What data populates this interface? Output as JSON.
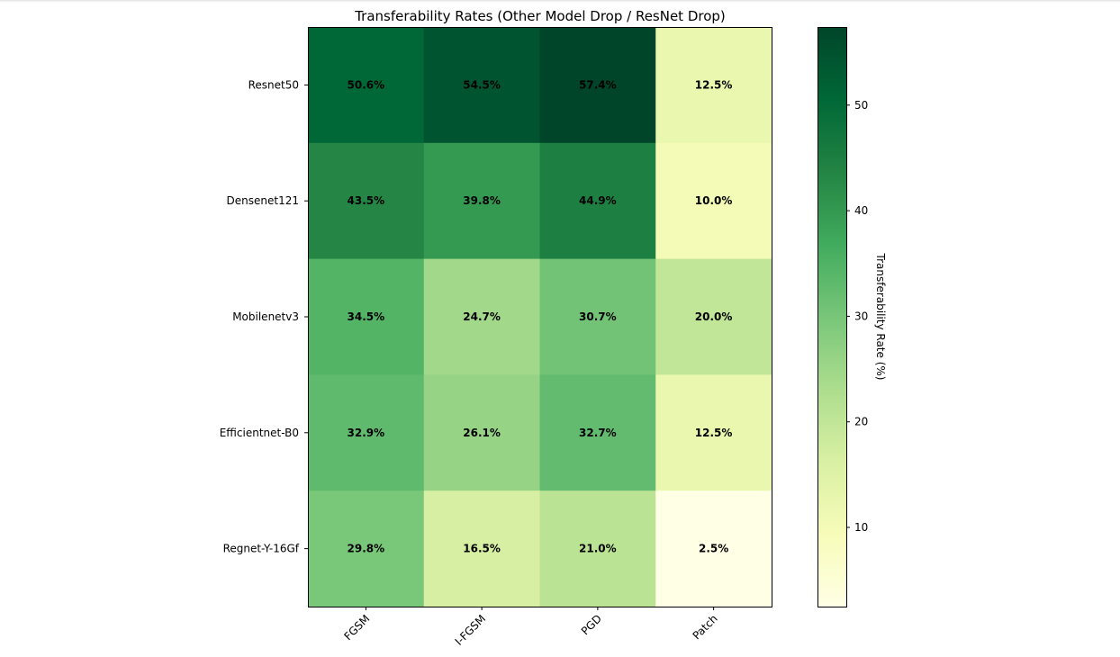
{
  "chart_data": {
    "type": "heatmap",
    "title": "Transferability Rates (Other Model Drop / ResNet Drop)",
    "rows": [
      "Resnet50",
      "Densenet121",
      "Mobilenetv3",
      "Efficientnet-B0",
      "Regnet-Y-16Gf"
    ],
    "columns": [
      "FGSM",
      "I-FGSM",
      "PGD",
      "Patch"
    ],
    "values": [
      [
        50.6,
        54.5,
        57.4,
        12.5
      ],
      [
        43.5,
        39.8,
        44.9,
        10.0
      ],
      [
        34.5,
        24.7,
        30.7,
        20.0
      ],
      [
        32.9,
        26.1,
        32.7,
        12.5
      ],
      [
        29.8,
        16.5,
        21.0,
        2.5
      ]
    ],
    "cell_labels": [
      [
        "50.6%",
        "54.5%",
        "57.4%",
        "12.5%"
      ],
      [
        "43.5%",
        "39.8%",
        "44.9%",
        "10.0%"
      ],
      [
        "34.5%",
        "24.7%",
        "30.7%",
        "20.0%"
      ],
      [
        "32.9%",
        "26.1%",
        "32.7%",
        "12.5%"
      ],
      [
        "29.8%",
        "16.5%",
        "21.0%",
        "2.5%"
      ]
    ],
    "colormap": "YlGn",
    "colorbar": {
      "label": "Transferability Rate (%)",
      "range": [
        2.5,
        57.4
      ],
      "ticks": [
        10,
        20,
        30,
        40,
        50
      ],
      "tick_labels": [
        "10",
        "20",
        "30",
        "40",
        "50"
      ]
    },
    "colors": {
      "ylgn_stops": [
        "#ffffe5",
        "#f7fcb9",
        "#d9f0a3",
        "#addd8e",
        "#78c679",
        "#41ab5d",
        "#238443",
        "#006837",
        "#004529"
      ]
    }
  }
}
